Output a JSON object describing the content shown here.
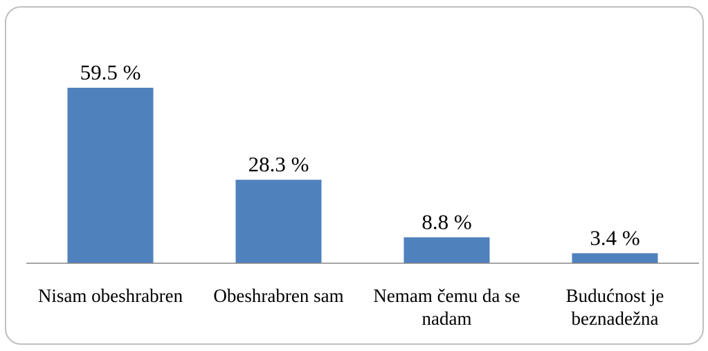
{
  "chart_data": {
    "type": "bar",
    "categories": [
      "Nisam obeshrabren",
      "Obeshrabren sam",
      "Nemam čemu da se nadam",
      "Budućnost je beznadežna"
    ],
    "values": [
      59.5,
      28.3,
      8.8,
      3.4
    ],
    "value_labels": [
      "59.5 %",
      "28.3 %",
      "8.8 %",
      "3.4 %"
    ],
    "color": "#4f81bd"
  }
}
